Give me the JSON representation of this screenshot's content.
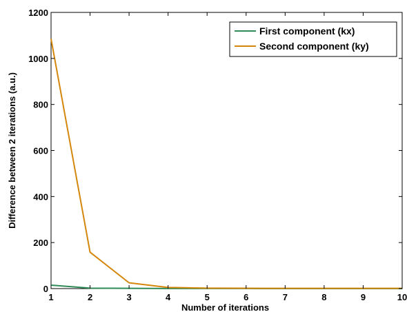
{
  "chart_data": {
    "type": "line",
    "title": "",
    "xlabel": "Number of iterations",
    "ylabel": "Difference between 2 iterations (a.u.)",
    "xlim": [
      1,
      10
    ],
    "ylim": [
      0,
      1200
    ],
    "x": [
      1,
      2,
      3,
      4,
      5,
      6,
      7,
      8,
      9,
      10
    ],
    "xticks": [
      "1",
      "2",
      "3",
      "4",
      "5",
      "6",
      "7",
      "8",
      "9",
      "10"
    ],
    "yticks": [
      "0",
      "200",
      "400",
      "600",
      "800",
      "1000",
      "1200"
    ],
    "grid": false,
    "legend_position": "top-right",
    "series": [
      {
        "name": "First component (kx)",
        "color": "#2e8b57",
        "values": [
          15,
          2,
          1,
          0.5,
          0.3,
          0.2,
          0.1,
          0.1,
          0.1,
          0.1
        ]
      },
      {
        "name": "Second component (ky)",
        "color": "#d4860b",
        "values": [
          1085,
          158,
          25,
          5,
          2,
          1.5,
          1,
          1,
          1,
          1
        ]
      }
    ]
  }
}
